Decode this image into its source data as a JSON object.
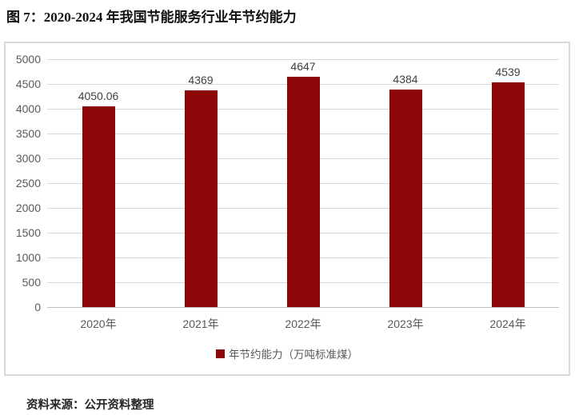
{
  "page": {
    "title": "图 7：2020-2024 年我国节能服务行业年节约能力",
    "source_note": "资料来源：公开资料整理"
  },
  "colors": {
    "bar": "#8b0708",
    "axis_text": "#595959",
    "data_label": "#404040",
    "gridline": "#d9d9d9",
    "chart_border": "#d9d9d9"
  },
  "chart_data": {
    "type": "bar",
    "title": "图 7：2020-2024 年我国节能服务行业年节约能力",
    "categories": [
      "2020年",
      "2021年",
      "2022年",
      "2023年",
      "2024年"
    ],
    "values": [
      4050.06,
      4369,
      4647,
      4384,
      4539
    ],
    "data_labels": [
      "4050.06",
      "4369",
      "4647",
      "4384",
      "4539"
    ],
    "series_name": "年节约能力（万吨标准煤）",
    "legend": [
      "年节约能力（万吨标准煤）"
    ],
    "legend_position": "bottom",
    "xlabel": "",
    "ylabel": "",
    "ylim": [
      0,
      5000
    ],
    "ytick_step": 500,
    "yticks": [
      0,
      500,
      1000,
      1500,
      2000,
      2500,
      3000,
      3500,
      4000,
      4500,
      5000
    ],
    "grid": true,
    "bar_color": "#8b0708"
  }
}
